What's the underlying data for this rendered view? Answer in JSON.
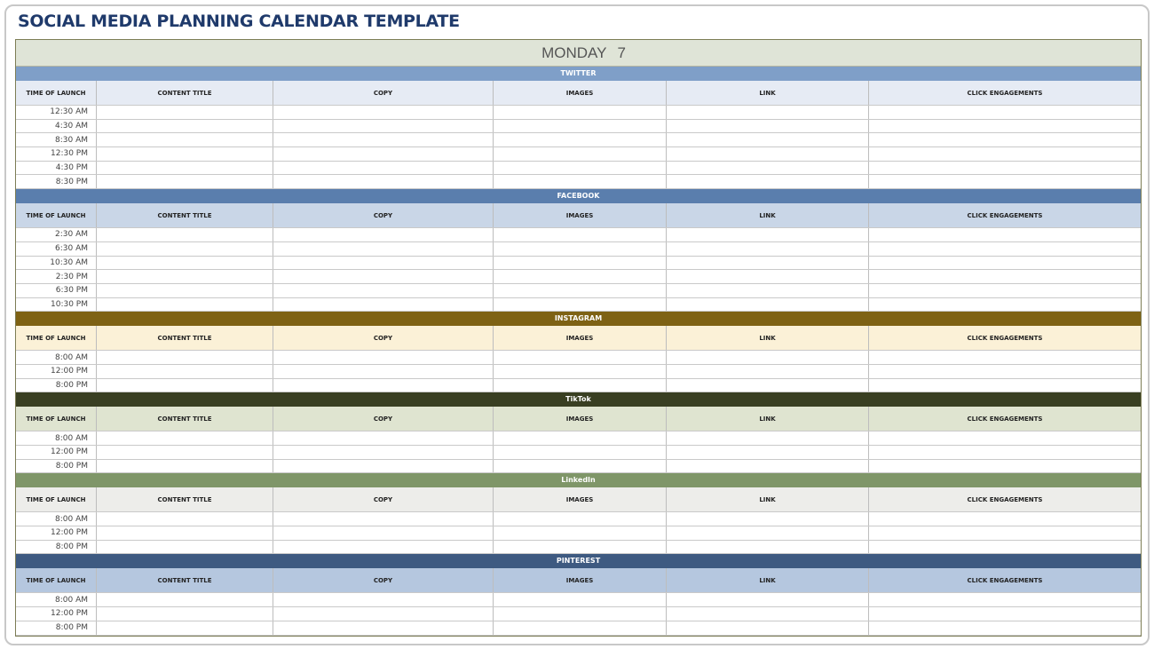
{
  "title": "SOCIAL MEDIA PLANNING CALENDAR TEMPLATE",
  "day": {
    "name": "MONDAY",
    "number": "7"
  },
  "columns": [
    "TIME OF LAUNCH",
    "CONTENT TITLE",
    "COPY",
    "IMAGES",
    "LINK",
    "CLICK ENGAGEMENTS"
  ],
  "sections": [
    {
      "name": "TWITTER",
      "band_color": "#7f9fc8",
      "header_color": "#e6ebf4",
      "times": [
        "12:30 AM",
        "4:30 AM",
        "8:30 AM",
        "12:30 PM",
        "4:30 PM",
        "8:30 PM"
      ]
    },
    {
      "name": "FACEBOOK",
      "band_color": "#5a7ead",
      "header_color": "#c9d6e7",
      "times": [
        "2:30 AM",
        "6:30 AM",
        "10:30 AM",
        "2:30 PM",
        "6:30 PM",
        "10:30 PM"
      ]
    },
    {
      "name": "INSTAGRAM",
      "band_color": "#7e6214",
      "header_color": "#fbf1d7",
      "times": [
        "8:00 AM",
        "12:00 PM",
        "8:00 PM"
      ]
    },
    {
      "name": "TikTok",
      "band_color": "#393f22",
      "header_color": "#dfe4d0",
      "times": [
        "8:00 AM",
        "12:00 PM",
        "8:00 PM"
      ]
    },
    {
      "name": "LinkedIn",
      "band_color": "#7f9668",
      "header_color": "#ededea",
      "times": [
        "8:00 AM",
        "12:00 PM",
        "8:00 PM"
      ]
    },
    {
      "name": "PINTEREST",
      "band_color": "#3e5a81",
      "header_color": "#b5c7df",
      "times": [
        "8:00 AM",
        "12:00 PM",
        "8:00 PM"
      ]
    }
  ]
}
